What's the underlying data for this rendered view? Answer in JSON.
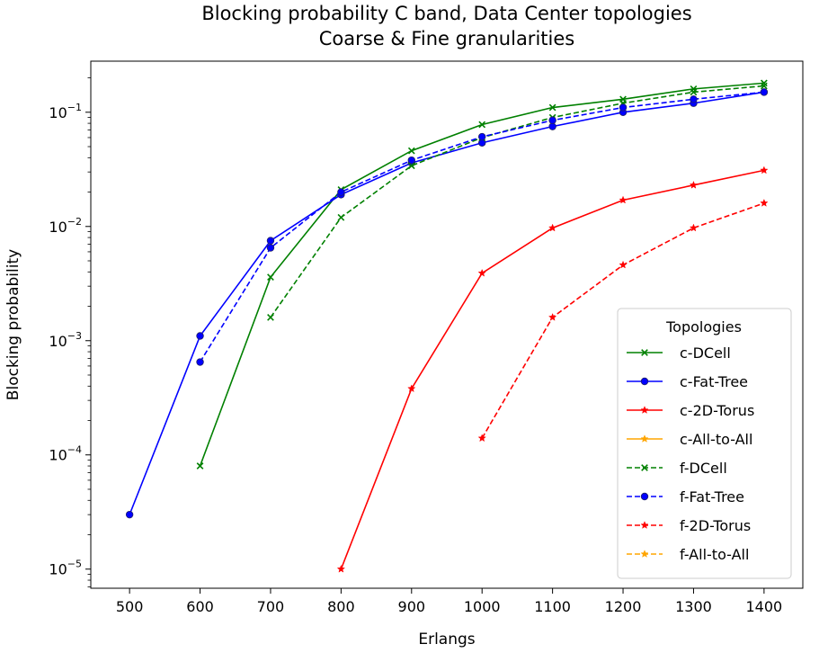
{
  "chart_data": {
    "type": "line",
    "title_lines": [
      "Blocking probability C band, Data Center topologies",
      "Coarse & Fine granularities"
    ],
    "xlabel": "Erlangs",
    "ylabel": "Blocking probability",
    "xlim": [
      445,
      1455
    ],
    "ylim": [
      6.8e-06,
      0.28
    ],
    "yscale": "log",
    "grid": false,
    "x_ticks": [
      500,
      600,
      700,
      800,
      900,
      1000,
      1100,
      1200,
      1300,
      1400
    ],
    "x_tick_labels": [
      "500",
      "600",
      "700",
      "800",
      "900",
      "1000",
      "1100",
      "1200",
      "1300",
      "1400"
    ],
    "y_ticks": [
      1e-05,
      0.0001,
      0.001,
      0.01,
      0.1
    ],
    "y_tick_labels": [
      {
        "base": "10",
        "exp": "−5"
      },
      {
        "base": "10",
        "exp": "−4"
      },
      {
        "base": "10",
        "exp": "−3"
      },
      {
        "base": "10",
        "exp": "−2"
      },
      {
        "base": "10",
        "exp": "−1"
      }
    ],
    "legend": {
      "title": "Topologies",
      "placement": "lower-right"
    },
    "series": [
      {
        "name": "c-DCell",
        "color": "#008000",
        "dash": "solid",
        "marker": "x",
        "x": [
          600,
          700,
          800,
          900,
          1000,
          1100,
          1200,
          1300,
          1400
        ],
        "y": [
          8e-05,
          0.0036,
          0.021,
          0.046,
          0.078,
          0.11,
          0.13,
          0.16,
          0.18
        ]
      },
      {
        "name": "c-Fat-Tree",
        "color": "#0000ff",
        "dash": "solid",
        "marker": "circle",
        "x": [
          500,
          600,
          700,
          800,
          900,
          1000,
          1100,
          1200,
          1300,
          1400
        ],
        "y": [
          3e-05,
          0.0011,
          0.0075,
          0.019,
          0.036,
          0.054,
          0.075,
          0.1,
          0.12,
          0.15
        ]
      },
      {
        "name": "c-2D-Torus",
        "color": "#ff0000",
        "dash": "solid",
        "marker": "star",
        "x": [
          800,
          900,
          1000,
          1100,
          1200,
          1300,
          1400
        ],
        "y": [
          1e-05,
          0.00038,
          0.0039,
          0.0097,
          0.017,
          0.023,
          0.031
        ]
      },
      {
        "name": "c-All-to-All",
        "color": "#ffa500",
        "dash": "solid",
        "marker": "star",
        "x": [],
        "y": []
      },
      {
        "name": "f-DCell",
        "color": "#008000",
        "dash": "dashed",
        "marker": "x",
        "x": [
          700,
          800,
          900,
          1000,
          1100,
          1200,
          1300,
          1400
        ],
        "y": [
          0.0016,
          0.012,
          0.034,
          0.06,
          0.09,
          0.12,
          0.15,
          0.17
        ]
      },
      {
        "name": "f-Fat-Tree",
        "color": "#0000ff",
        "dash": "dashed",
        "marker": "circle",
        "x": [
          600,
          700,
          800,
          900,
          1000,
          1100,
          1200,
          1300,
          1400
        ],
        "y": [
          0.00065,
          0.0065,
          0.02,
          0.038,
          0.061,
          0.085,
          0.11,
          0.13,
          0.15
        ]
      },
      {
        "name": "f-2D-Torus",
        "color": "#ff0000",
        "dash": "dashed",
        "marker": "star",
        "x": [
          1000,
          1100,
          1200,
          1300,
          1400
        ],
        "y": [
          0.00014,
          0.0016,
          0.0046,
          0.0097,
          0.016
        ]
      },
      {
        "name": "f-All-to-All",
        "color": "#ffa500",
        "dash": "dashed",
        "marker": "star",
        "x": [],
        "y": []
      }
    ]
  }
}
